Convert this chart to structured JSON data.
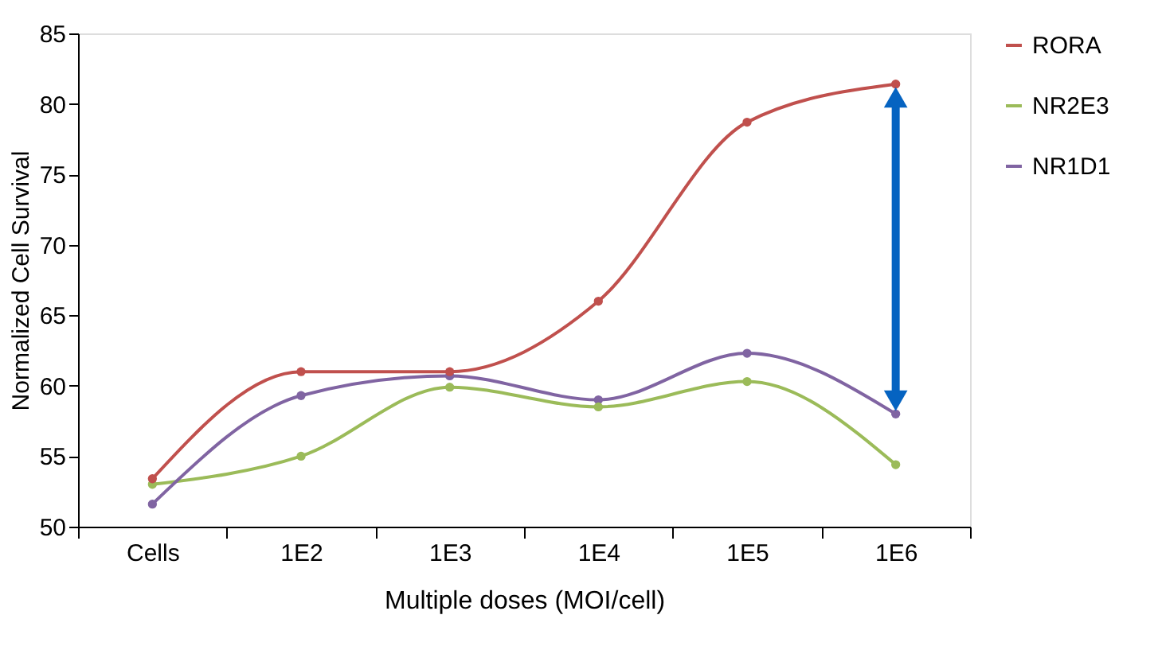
{
  "chart_data": {
    "type": "line",
    "xlabel": "Multiple doses (MOI/cell)",
    "ylabel": "Normalized Cell Survival",
    "categories": [
      "Cells",
      "1E2",
      "1E3",
      "1E4",
      "1E5",
      "1E6"
    ],
    "series": [
      {
        "name": "RORA",
        "color": "#c0504d",
        "values": [
          53.4,
          61.0,
          61.0,
          66.0,
          78.7,
          81.4
        ]
      },
      {
        "name": "NR2E3",
        "color": "#9bbb59",
        "values": [
          53.0,
          55.0,
          59.9,
          58.5,
          60.3,
          54.4
        ]
      },
      {
        "name": "NR1D1",
        "color": "#8064a2",
        "values": [
          51.6,
          59.3,
          60.7,
          59.0,
          62.3,
          58.0
        ]
      }
    ],
    "ylim": [
      50,
      85
    ],
    "yticks": [
      50,
      55,
      60,
      65,
      70,
      75,
      80,
      85
    ],
    "grid": false,
    "legend": "right",
    "marker": "circle",
    "line_style": "solid"
  }
}
